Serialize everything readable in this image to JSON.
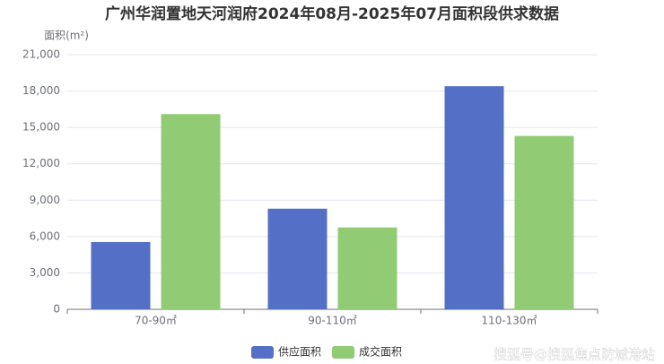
{
  "chart_data": {
    "type": "bar",
    "title": "广州华润置地天河润府2024年08月-2025年07月面积段供求数据",
    "y_label": "面积(m²)",
    "categories": [
      "70-90㎡",
      "90-110㎡",
      "110-130㎡"
    ],
    "series": [
      {
        "name": "供应面积",
        "color": "#5470c6",
        "values": [
          5550,
          8300,
          18400
        ]
      },
      {
        "name": "成交面积",
        "color": "#91cc75",
        "values": [
          16100,
          6750,
          14300
        ]
      }
    ],
    "ylim": [
      0,
      21000
    ],
    "yticks": [
      0,
      {
        "value": 3000,
        "label": "3,000"
      },
      {
        "value": 6000,
        "label": "6,000"
      },
      {
        "value": 9000,
        "label": "9,000"
      },
      {
        "value": 12000,
        "label": "12,000"
      },
      {
        "value": 15000,
        "label": "15,000"
      },
      {
        "value": 18000,
        "label": "18,000"
      },
      {
        "value": 21000,
        "label": "21,000"
      }
    ],
    "grid": true,
    "legend": "bottom",
    "watermark": "搜狐号@搜狐焦点防城港站"
  }
}
